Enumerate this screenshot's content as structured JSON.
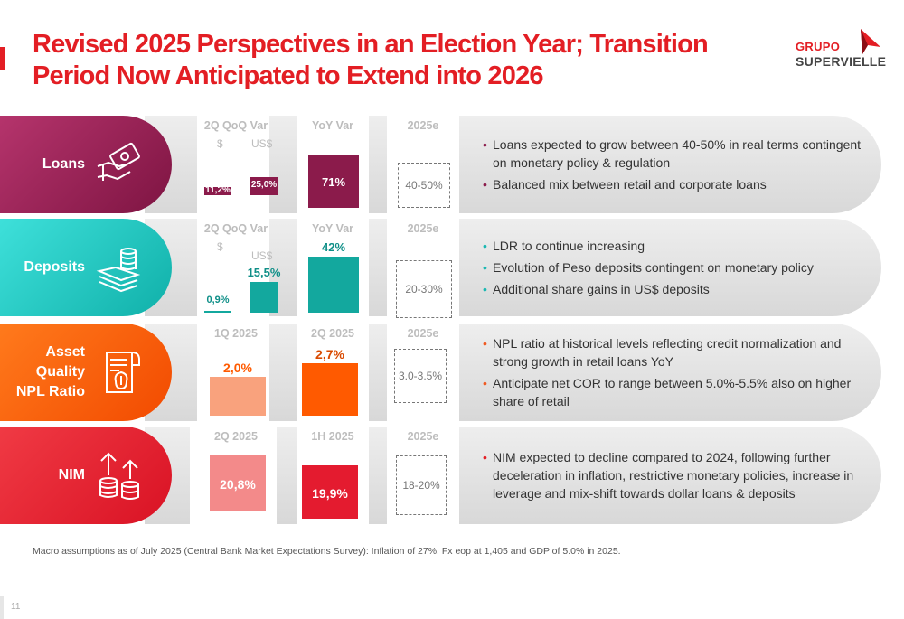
{
  "title": "Revised 2025 Perspectives in an Election Year; Transition Period Now Anticipated to Extend into 2026",
  "logo": {
    "line1": "GRUPO",
    "line2": "SUPERVIELLE"
  },
  "rows": {
    "loans": {
      "label": "Loans",
      "icon": "money-hand-icon",
      "col1_header": "2Q QoQ Var",
      "sub_peso": "$",
      "sub_usd": "US$",
      "bar_peso_value": 11.2,
      "bar_peso_label": "11,2%",
      "bar_usd_value": 25.0,
      "bar_usd_label": "25,0%",
      "col2_header": "YoY Var",
      "bar_yoy_value": 71,
      "bar_yoy_label": "71%",
      "col3_header": "2025e",
      "range": "40-50%",
      "bullets": [
        "Loans expected to grow between 40-50% in real terms contingent on monetary policy & regulation",
        "Balanced mix between retail and corporate loans"
      ]
    },
    "deposits": {
      "label": "Deposits",
      "icon": "cash-stack-icon",
      "col1_header": "2Q QoQ Var",
      "sub_peso": "$",
      "sub_usd": "US$",
      "bar_peso_value": 0.9,
      "bar_peso_label": "0,9%",
      "bar_usd_value": 15.5,
      "bar_usd_label": "15,5%",
      "col2_header": "YoY Var",
      "bar_yoy_value": 42,
      "bar_yoy_label": "42%",
      "col3_header": "2025e",
      "range": "20-30%",
      "bullets": [
        "LDR to continue increasing",
        "Evolution of Peso deposits contingent on monetary policy",
        "Additional share gains in US$ deposits"
      ]
    },
    "asset_quality": {
      "label_lines": [
        "Asset",
        "Quality",
        "NPL Ratio"
      ],
      "icon": "receipt-moneybag-icon",
      "col1_header": "1Q 2025",
      "bar1_value": 2.0,
      "bar1_label": "2,0%",
      "col2_header": "2Q 2025",
      "bar2_value": 2.7,
      "bar2_label": "2,7%",
      "col3_header": "2025e",
      "range": "3.0-3.5%",
      "bullets": [
        "NPL ratio at historical levels reflecting credit normalization and strong growth in retail loans YoY",
        "Anticipate net COR to range between 5.0%-5.5% also on higher share of retail"
      ]
    },
    "nim": {
      "label": "NIM",
      "icon": "coins-up-arrows-icon",
      "col1_header": "2Q 2025",
      "bar1_value": 20.8,
      "bar1_label": "20,8%",
      "col2_header": "1H 2025",
      "bar2_value": 19.9,
      "bar2_label": "19,9%",
      "col3_header": "2025e",
      "range": "18-20%",
      "bullets": [
        "NIM expected to decline compared to 2024, following further deceleration in inflation, restrictive monetary policies, increase in leverage and mix-shift towards dollar loans & deposits"
      ]
    }
  },
  "colors": {
    "brand_red": "#e31e24",
    "loans": "#8b1b4b",
    "deposits": "#13a89e",
    "deposits_label": "#19c7c0",
    "asset_quality": "#ff5a00",
    "asset_quality_light": "#f9a27d",
    "nim": "#e41b2f",
    "nim_light": "#f38a8a"
  },
  "footnote": "Macro assumptions as of July 2025 (Central Bank Market Expectations Survey): Inflation of  27%, Fx eop at 1,405 and GDP of 5.0% in 2025.",
  "page_number": "11"
}
